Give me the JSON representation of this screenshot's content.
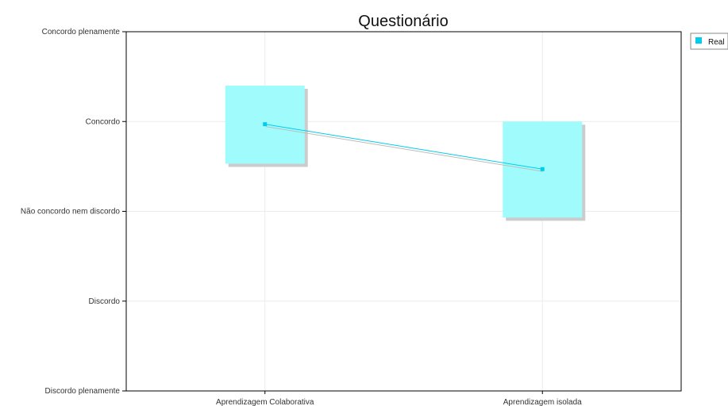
{
  "chart_data": {
    "type": "line",
    "title": "Questionário",
    "xlabel": "",
    "ylabel": "",
    "categories": [
      "Aprendizagem Colaborativa",
      "Aprendizagem isolada"
    ],
    "y_tick_labels": [
      "Discordo plenamente",
      "Discordo",
      "Não concordo nem discordo",
      "Concordo",
      "Concordo plenamente"
    ],
    "y_tick_values": [
      1,
      2,
      3,
      4,
      5
    ],
    "ylim": [
      1,
      5
    ],
    "grid": true,
    "legend_position": "top-right-outside",
    "series": [
      {
        "name": "Real",
        "values": [
          3.97,
          3.47
        ],
        "range_low": [
          3.53,
          2.93
        ],
        "range_high": [
          4.4,
          4.0
        ],
        "color": "#00ccee",
        "box_color": "#a0fcfc",
        "shadow_color": "#cccccc"
      }
    ]
  }
}
